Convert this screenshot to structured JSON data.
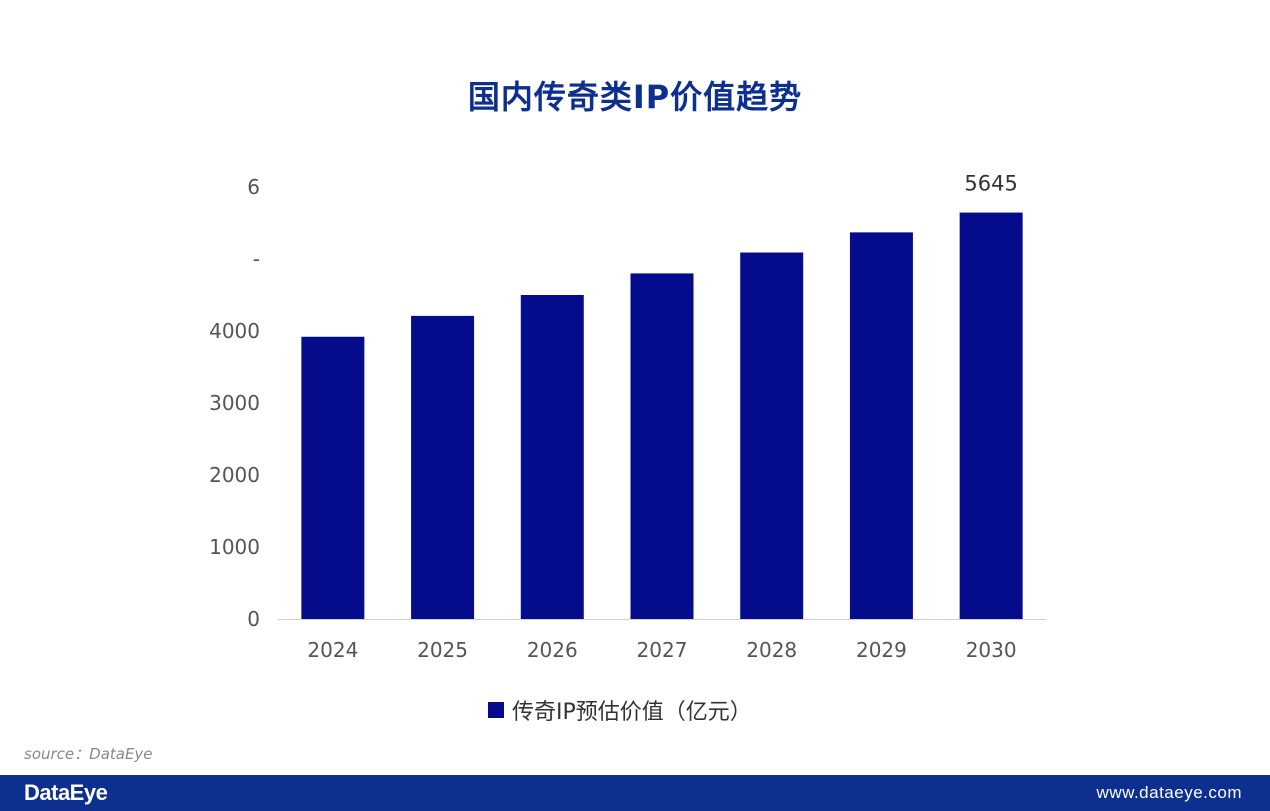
{
  "chart_data": {
    "type": "bar",
    "title": "国内传奇类IP价值趋势",
    "categories": [
      "2024",
      "2025",
      "2026",
      "2027",
      "2028",
      "2029",
      "2030"
    ],
    "series": [
      {
        "name": "传奇IP预估价值（亿元）",
        "values": [
          3920,
          4210,
          4500,
          4800,
          5090,
          5370,
          5645
        ]
      }
    ],
    "y_ticks": [
      "0",
      "1000",
      "2000",
      "3000",
      "4000",
      "-",
      "6"
    ],
    "y_tick_values": [
      0,
      1000,
      2000,
      3000,
      4000,
      5000,
      6000
    ],
    "ylim": [
      0,
      6000
    ],
    "data_labels": [
      {
        "category": "2030",
        "label": "5645"
      }
    ],
    "grid": false,
    "legend_position": "bottom",
    "bar_color": "#040c8c"
  },
  "source": "source：DataEye",
  "footer": {
    "brand": "DataEye",
    "website": "www.dataeye.com",
    "background": "#0d2f8f"
  }
}
